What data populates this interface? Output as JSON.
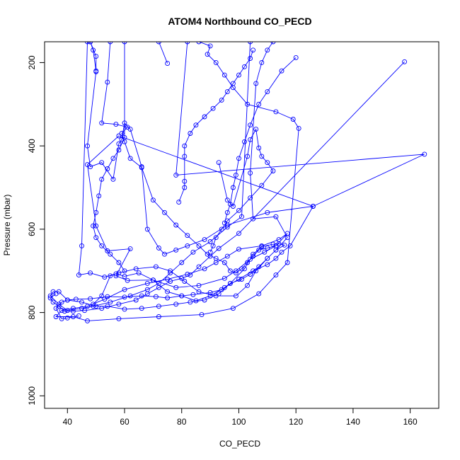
{
  "chart_data": {
    "type": "line",
    "title": "ATOM4 Northbound CO_PECD",
    "xlabel": "CO_PECD",
    "ylabel": "Pressure (mbar)",
    "xlim": [
      32,
      170
    ],
    "ylim": [
      1030,
      150
    ],
    "y_reversed": true,
    "x_ticks": [
      40,
      60,
      80,
      100,
      120,
      140,
      160
    ],
    "y_ticks": [
      200,
      400,
      600,
      800,
      1000
    ],
    "grid": false,
    "marker": "open-circle",
    "series": [
      {
        "color": "#0000ff",
        "points": [
          [
            49,
            780
          ],
          [
            52,
            760
          ],
          [
            55,
            712
          ],
          [
            57,
            707
          ],
          [
            60,
            713
          ],
          [
            65,
            705
          ],
          [
            70,
            722
          ],
          [
            75,
            750
          ],
          [
            80,
            760
          ],
          [
            85,
            772
          ],
          [
            90,
            760
          ],
          [
            95,
            740
          ],
          [
            100,
            720
          ],
          [
            105,
            700
          ],
          [
            110,
            685
          ],
          [
            113,
            670
          ],
          [
            115,
            655
          ],
          [
            118,
            640
          ],
          [
            126,
            545
          ],
          [
            58,
            376
          ],
          [
            47,
            445
          ],
          [
            50,
            592
          ],
          [
            54,
            652
          ],
          [
            62,
            647
          ],
          [
            57,
            712
          ],
          [
            61,
            723
          ],
          [
            70,
            722
          ],
          [
            78,
            740
          ],
          [
            86,
            735
          ],
          [
            95,
            718
          ],
          [
            99,
            700
          ],
          [
            104,
            672
          ],
          [
            109,
            655
          ],
          [
            113,
            640
          ],
          [
            117,
            610
          ],
          [
            114,
            625
          ],
          [
            108,
            640
          ],
          [
            100,
            648
          ],
          [
            96,
            665
          ],
          [
            92,
            680
          ],
          [
            88,
            695
          ],
          [
            82,
            708
          ],
          [
            75,
            720
          ],
          [
            68,
            730
          ],
          [
            60,
            745
          ],
          [
            53,
            768
          ],
          [
            47,
            785
          ],
          [
            42,
            790
          ],
          [
            38,
            795
          ],
          [
            36,
            810
          ],
          [
            42,
            810
          ],
          [
            47,
            820
          ],
          [
            58,
            815
          ],
          [
            72,
            810
          ],
          [
            87,
            805
          ],
          [
            98,
            790
          ],
          [
            107,
            755
          ],
          [
            113,
            710
          ],
          [
            117,
            680
          ],
          [
            121,
            358
          ],
          [
            119,
            336
          ],
          [
            113,
            318
          ],
          [
            103,
            300
          ],
          [
            98,
            260
          ],
          [
            95,
            230
          ],
          [
            92,
            200
          ],
          [
            89,
            180
          ],
          [
            90,
            160
          ],
          [
            86,
            150
          ],
          [
            82,
            150
          ],
          [
            78,
            470
          ],
          [
            165,
            420
          ],
          [
            126,
            545
          ],
          [
            110,
            560
          ],
          [
            96,
            590
          ],
          [
            88,
            625
          ],
          [
            82,
            640
          ],
          [
            78,
            650
          ],
          [
            74,
            660
          ],
          [
            72,
            645
          ],
          [
            68,
            600
          ],
          [
            66,
            450
          ],
          [
            62,
            360
          ],
          [
            60,
            345
          ],
          [
            59,
            385
          ],
          [
            58,
            395
          ],
          [
            56,
            480
          ],
          [
            52,
            440
          ],
          [
            48,
            450
          ],
          [
            47,
            400
          ],
          [
            50,
            222
          ],
          [
            50,
            185
          ],
          [
            48,
            150
          ],
          [
            47,
            150
          ],
          [
            45,
            640
          ],
          [
            44,
            710
          ],
          [
            48,
            705
          ],
          [
            53,
            715
          ],
          [
            58,
            705
          ],
          [
            64,
            695
          ],
          [
            71,
            690
          ],
          [
            76,
            700
          ],
          [
            81,
            725
          ],
          [
            86,
            750
          ],
          [
            92,
            760
          ],
          [
            99,
            760
          ],
          [
            103,
            735
          ],
          [
            106,
            700
          ],
          [
            110,
            670
          ],
          [
            113,
            650
          ],
          [
            117,
            620
          ],
          [
            113,
            570
          ],
          [
            105,
            575
          ],
          [
            104,
            465
          ],
          [
            106,
            250
          ],
          [
            108,
            200
          ],
          [
            110,
            170
          ],
          [
            112,
            150
          ],
          [
            104,
            150
          ],
          [
            101,
            570
          ],
          [
            96,
            595
          ],
          [
            90,
            630
          ],
          [
            84,
            655
          ],
          [
            80,
            680
          ],
          [
            76,
            705
          ],
          [
            72,
            730
          ],
          [
            68,
            745
          ],
          [
            62,
            760
          ],
          [
            55,
            775
          ],
          [
            49,
            785
          ],
          [
            45,
            790
          ],
          [
            40,
            795
          ],
          [
            37,
            780
          ],
          [
            34,
            760
          ],
          [
            35,
            750
          ],
          [
            37,
            750
          ],
          [
            40,
            770
          ],
          [
            45,
            775
          ],
          [
            50,
            785
          ],
          [
            54,
            785
          ],
          [
            60,
            792
          ],
          [
            66,
            790
          ],
          [
            72,
            785
          ],
          [
            78,
            780
          ],
          [
            83,
            775
          ],
          [
            88,
            770
          ],
          [
            93,
            755
          ],
          [
            97,
            730
          ],
          [
            102,
            695
          ],
          [
            105,
            660
          ],
          [
            108,
            642
          ],
          [
            112,
            636
          ],
          [
            114,
            635
          ],
          [
            116,
            638
          ],
          [
            113,
            650
          ],
          [
            110,
            670
          ],
          [
            107,
            690
          ],
          [
            104,
            708
          ],
          [
            101,
            720
          ],
          [
            97,
            730
          ],
          [
            94,
            745
          ],
          [
            90,
            752
          ],
          [
            84,
            757
          ],
          [
            80,
            760
          ],
          [
            75,
            765
          ],
          [
            71,
            762
          ],
          [
            66,
            760
          ],
          [
            60,
            763
          ],
          [
            54,
            762
          ],
          [
            48,
            767
          ],
          [
            43,
            768
          ],
          [
            40,
            770
          ],
          [
            38,
            775
          ],
          [
            36,
            790
          ],
          [
            38,
            815
          ],
          [
            40,
            813
          ],
          [
            44,
            808
          ]
        ]
      },
      {
        "color": "#0000ff",
        "points": [
          [
            158,
            198
          ],
          [
            100,
            610
          ],
          [
            93,
            646
          ],
          [
            90,
            665
          ],
          [
            86,
            690
          ],
          [
            83,
            710
          ],
          [
            80,
            718
          ],
          [
            76,
            725
          ],
          [
            72,
            740
          ],
          [
            68,
            755
          ],
          [
            64,
            770
          ],
          [
            58,
            780
          ],
          [
            52,
            790
          ],
          [
            46,
            795
          ],
          [
            42,
            797
          ],
          [
            39,
            797
          ],
          [
            37,
            785
          ],
          [
            35,
            775
          ],
          [
            34,
            765
          ],
          [
            36,
            755
          ]
        ]
      },
      {
        "color": "#0000ff",
        "points": [
          [
            75,
            202
          ],
          [
            72,
            150
          ],
          [
            55,
            150
          ],
          [
            54,
            247
          ],
          [
            52,
            345
          ],
          [
            57,
            348
          ],
          [
            61,
            355
          ],
          [
            59,
            370
          ],
          [
            60,
            390
          ],
          [
            62,
            430
          ],
          [
            66,
            452
          ],
          [
            70,
            530
          ],
          [
            74,
            560
          ],
          [
            78,
            590
          ],
          [
            82,
            615
          ],
          [
            86,
            640
          ],
          [
            89,
            660
          ],
          [
            92,
            670
          ],
          [
            95,
            680
          ],
          [
            97,
            700
          ],
          [
            99,
            705
          ],
          [
            101,
            695
          ],
          [
            103,
            680
          ],
          [
            105,
            665
          ],
          [
            107,
            650
          ],
          [
            110,
            645
          ],
          [
            113,
            640
          ]
        ]
      },
      {
        "color": "#0000ff",
        "points": [
          [
            79,
            535
          ],
          [
            81,
            500
          ],
          [
            81,
            485
          ],
          [
            81,
            425
          ],
          [
            81,
            400
          ],
          [
            83,
            370
          ],
          [
            85,
            350
          ],
          [
            88,
            330
          ],
          [
            91,
            310
          ],
          [
            94,
            290
          ],
          [
            96,
            270
          ],
          [
            98,
            250
          ],
          [
            100,
            230
          ],
          [
            102,
            210
          ],
          [
            104,
            190
          ],
          [
            105,
            170
          ]
        ]
      },
      {
        "color": "#0000ff",
        "points": [
          [
            93,
            440
          ],
          [
            96,
            530
          ],
          [
            98,
            545
          ],
          [
            103,
            425
          ],
          [
            104,
            385
          ],
          [
            106,
            360
          ],
          [
            107,
            405
          ],
          [
            108,
            425
          ],
          [
            110,
            440
          ],
          [
            112,
            460
          ],
          [
            108,
            495
          ],
          [
            104,
            525
          ],
          [
            100,
            555
          ],
          [
            96,
            580
          ],
          [
            94,
            600
          ],
          [
            92,
            620
          ],
          [
            91,
            640
          ],
          [
            90,
            655
          ]
        ]
      },
      {
        "color": "#0000ff",
        "points": [
          [
            120,
            188
          ],
          [
            115,
            220
          ],
          [
            110,
            270
          ],
          [
            107,
            300
          ],
          [
            104,
            350
          ],
          [
            102,
            390
          ],
          [
            100,
            430
          ],
          [
            99,
            470
          ],
          [
            98,
            500
          ],
          [
            97,
            540
          ],
          [
            96,
            560
          ],
          [
            95,
            585
          ]
        ]
      },
      {
        "color": "#0000ff",
        "points": [
          [
            50,
            220
          ],
          [
            49,
            170
          ],
          [
            48,
            150
          ],
          [
            60,
            150
          ],
          [
            60,
            380
          ],
          [
            58,
            410
          ],
          [
            56,
            430
          ],
          [
            54,
            455
          ],
          [
            52,
            480
          ],
          [
            51,
            520
          ],
          [
            50,
            560
          ],
          [
            49,
            592
          ],
          [
            50,
            620
          ],
          [
            52,
            640
          ],
          [
            55,
            660
          ],
          [
            58,
            680
          ],
          [
            60,
            700
          ]
        ]
      }
    ]
  }
}
